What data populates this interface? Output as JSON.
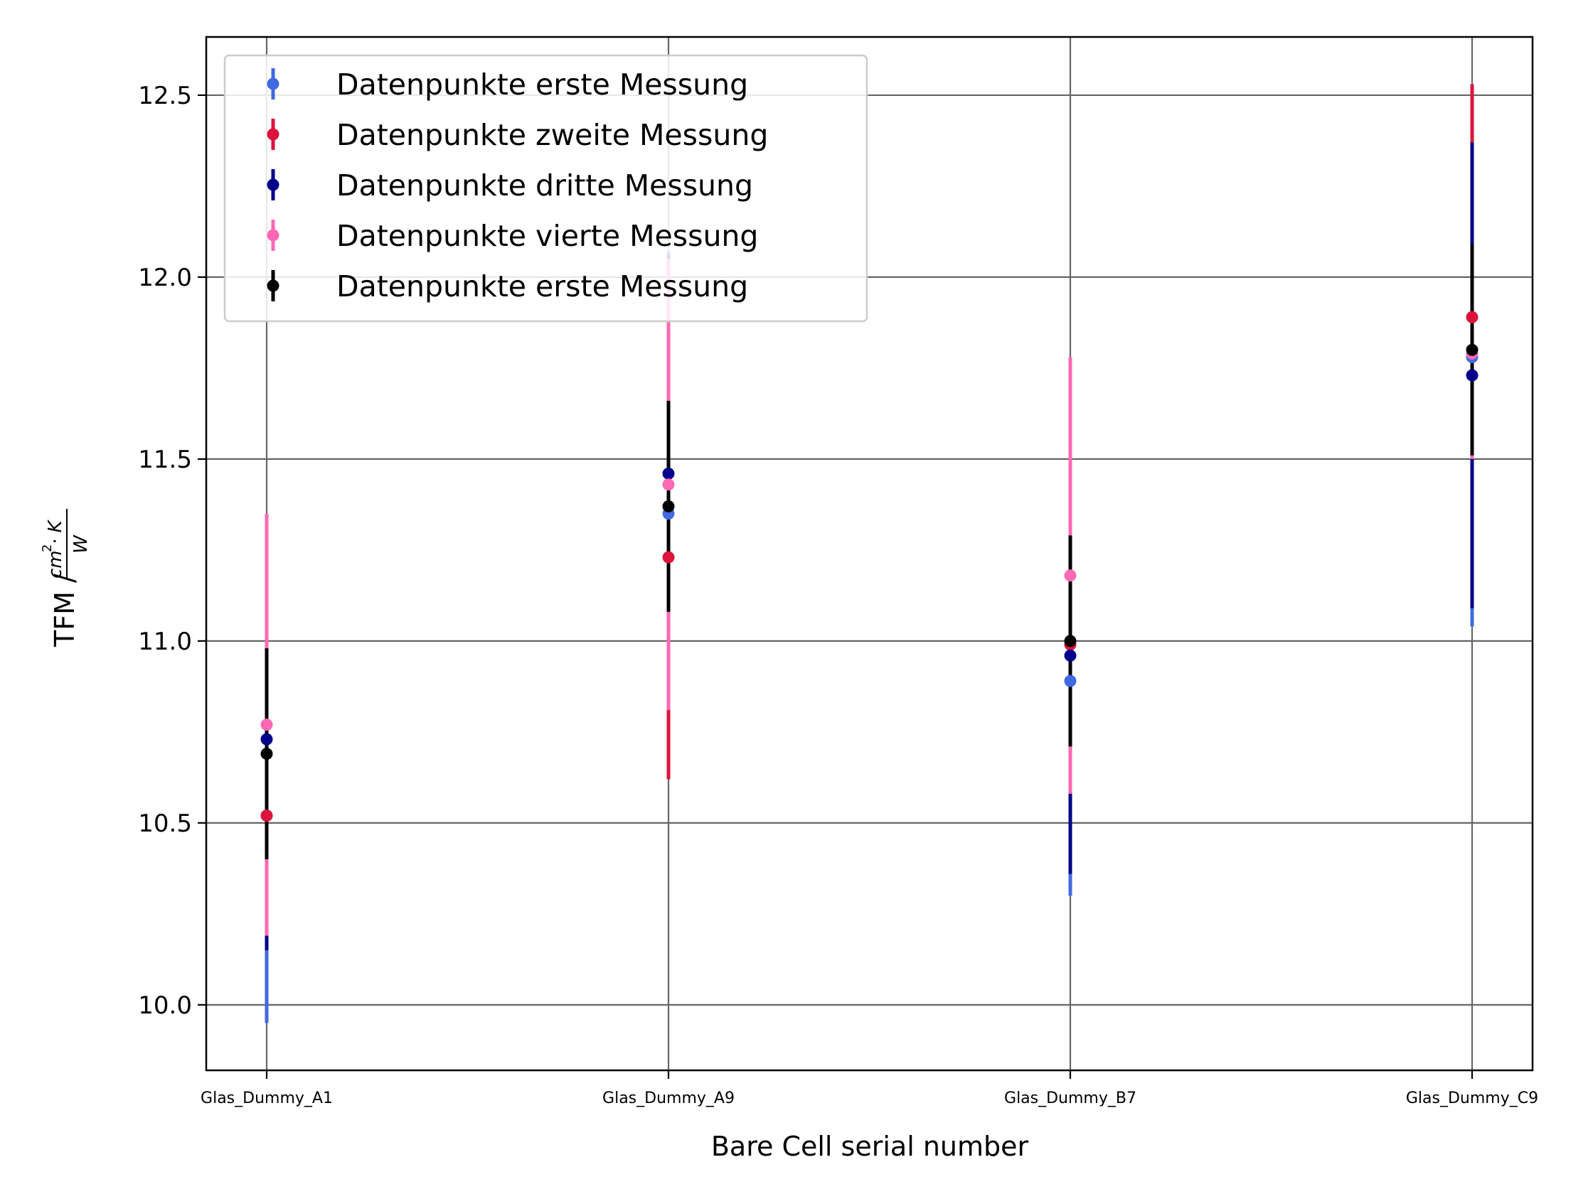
{
  "chart_data": {
    "type": "scatter",
    "title": "",
    "xlabel": "Bare Cell serial number",
    "ylabel": {
      "prefix": "TFM / ",
      "numerator": "cm",
      "exponent": "2",
      "numerator_rest": "· K",
      "denominator": "W"
    },
    "categories": [
      "Glas_Dummy_A1",
      "Glas_Dummy_A9",
      "Glas_Dummy_B7",
      "Glas_Dummy_C9"
    ],
    "ylim": [
      9.82,
      12.66
    ],
    "yticks": [
      "10.0",
      "10.5",
      "11.0",
      "11.5",
      "12.0",
      "12.5"
    ],
    "ytick_values": [
      10.0,
      10.5,
      11.0,
      11.5,
      12.0,
      12.5
    ],
    "grid": true,
    "legend_position": "top-left",
    "series": [
      {
        "name": "Datenpunkte erste Messung",
        "color": "#4169e1",
        "values": [
          10.52,
          11.35,
          10.89,
          11.78
        ],
        "errors": [
          0.57,
          0.72,
          0.59,
          0.74
        ]
      },
      {
        "name": "Datenpunkte zweite Messung",
        "color": "#dc143c",
        "values": [
          10.52,
          11.23,
          10.99,
          11.89
        ],
        "errors": [
          0.12,
          0.61,
          0.27,
          0.64
        ]
      },
      {
        "name": "Datenpunkte dritte Messung",
        "color": "#00008b",
        "values": [
          10.73,
          11.46,
          10.96,
          11.73
        ],
        "errors": [
          0.58,
          0.6,
          0.6,
          0.64
        ]
      },
      {
        "name": "Datenpunkte vierte Messung",
        "color": "#ff69b4",
        "values": [
          10.77,
          11.43,
          11.18,
          11.79
        ],
        "errors": [
          0.58,
          0.62,
          0.6,
          0.29
        ]
      },
      {
        "name": "Datenpunkte erste Messung",
        "color": "#000000",
        "values": [
          10.69,
          11.37,
          11.0,
          11.8
        ],
        "errors": [
          0.29,
          0.29,
          0.29,
          0.29
        ]
      }
    ]
  }
}
